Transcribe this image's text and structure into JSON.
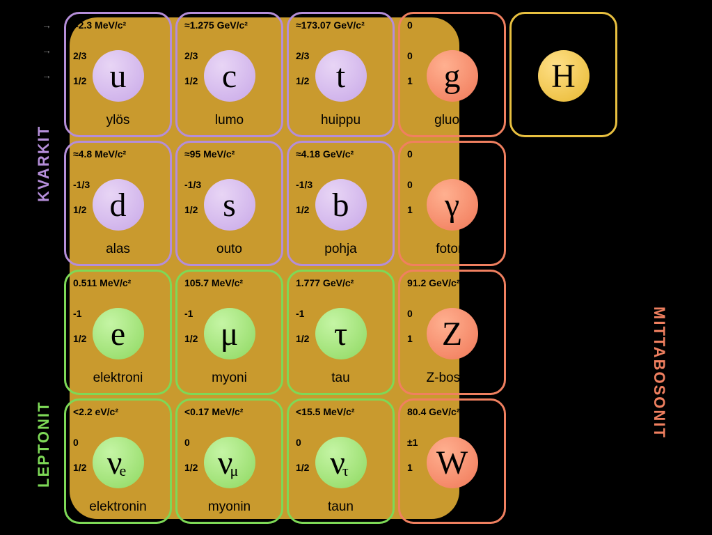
{
  "background_color": "#000000",
  "region_color": "#c99a2e",
  "groups": {
    "kvarkit": {
      "label": "KVARKIT",
      "color": "#b58ed9"
    },
    "leptonit": {
      "label": "LEPTONIT",
      "color": "#7ed957"
    },
    "mittabosonit": {
      "label": "MITTABOSONIT",
      "color": "#f08060"
    }
  },
  "particles": [
    {
      "id": "up",
      "row": 0,
      "col": 0,
      "symbol": "u",
      "name": "ylös",
      "mass": "≈2.3 MeV/c²",
      "charge": "2/3",
      "spin": "1/2",
      "type": "quark"
    },
    {
      "id": "charm",
      "row": 0,
      "col": 1,
      "symbol": "c",
      "name": "lumo",
      "mass": "≈1.275 GeV/c²",
      "charge": "2/3",
      "spin": "1/2",
      "type": "quark"
    },
    {
      "id": "top",
      "row": 0,
      "col": 2,
      "symbol": "t",
      "name": "huippu",
      "mass": "≈173.07 GeV/c²",
      "charge": "2/3",
      "spin": "1/2",
      "type": "quark"
    },
    {
      "id": "gluon",
      "row": 0,
      "col": 3,
      "symbol": "g",
      "name": "gluoni",
      "mass": "0",
      "charge": "0",
      "spin": "1",
      "type": "boson"
    },
    {
      "id": "higgs",
      "row": 0,
      "col": 4,
      "symbol": "H",
      "name": "",
      "mass": "",
      "charge": "",
      "spin": "",
      "type": "higgs"
    },
    {
      "id": "down",
      "row": 1,
      "col": 0,
      "symbol": "d",
      "name": "alas",
      "mass": "≈4.8 MeV/c²",
      "charge": "-1/3",
      "spin": "1/2",
      "type": "quark"
    },
    {
      "id": "strange",
      "row": 1,
      "col": 1,
      "symbol": "s",
      "name": "outo",
      "mass": "≈95 MeV/c²",
      "charge": "-1/3",
      "spin": "1/2",
      "type": "quark"
    },
    {
      "id": "bottom",
      "row": 1,
      "col": 2,
      "symbol": "b",
      "name": "pohja",
      "mass": "≈4.18 GeV/c²",
      "charge": "-1/3",
      "spin": "1/2",
      "type": "quark"
    },
    {
      "id": "photon",
      "row": 1,
      "col": 3,
      "symbol": "γ",
      "name": "fotoni",
      "mass": "0",
      "charge": "0",
      "spin": "1",
      "type": "boson"
    },
    {
      "id": "electron",
      "row": 2,
      "col": 0,
      "symbol": "e",
      "name": "elektroni",
      "mass": "0.511 MeV/c²",
      "charge": "-1",
      "spin": "1/2",
      "type": "lepton"
    },
    {
      "id": "muon",
      "row": 2,
      "col": 1,
      "symbol": "μ",
      "name": "myoni",
      "mass": "105.7 MeV/c²",
      "charge": "-1",
      "spin": "1/2",
      "type": "lepton"
    },
    {
      "id": "tau",
      "row": 2,
      "col": 2,
      "symbol": "τ",
      "name": "tau",
      "mass": "1.777 GeV/c²",
      "charge": "-1",
      "spin": "1/2",
      "type": "lepton"
    },
    {
      "id": "zboson",
      "row": 2,
      "col": 3,
      "symbol": "Z",
      "name": "Z-bosoni",
      "mass": "91.2 GeV/c²",
      "charge": "0",
      "spin": "1",
      "type": "boson"
    },
    {
      "id": "nue",
      "row": 3,
      "col": 0,
      "symbol": "ν",
      "sub": "e",
      "name": "elektronin",
      "mass": "<2.2 eV/c²",
      "charge": "0",
      "spin": "1/2",
      "type": "lepton"
    },
    {
      "id": "numu",
      "row": 3,
      "col": 1,
      "symbol": "ν",
      "sub": "μ",
      "name": "myonin",
      "mass": "<0.17 MeV/c²",
      "charge": "0",
      "spin": "1/2",
      "type": "lepton"
    },
    {
      "id": "nutau",
      "row": 3,
      "col": 2,
      "symbol": "ν",
      "sub": "τ",
      "name": "taun",
      "mass": "<15.5 MeV/c²",
      "charge": "0",
      "spin": "1/2",
      "type": "lepton"
    },
    {
      "id": "wboson",
      "row": 3,
      "col": 3,
      "symbol": "W",
      "name": "",
      "mass": "80.4 GeV/c²",
      "charge": "±1",
      "spin": "1",
      "type": "boson"
    }
  ],
  "colors": {
    "quark_border": "#b58ed9",
    "lepton_border": "#7ed957",
    "boson_border": "#f08060",
    "higgs_border": "#e8c040",
    "quark_fill": "#c8a8e8",
    "lepton_fill": "#8ed860",
    "boson_fill": "#f07858",
    "higgs_fill": "#e8b830"
  },
  "arrows": [
    "→",
    "→",
    "→"
  ]
}
